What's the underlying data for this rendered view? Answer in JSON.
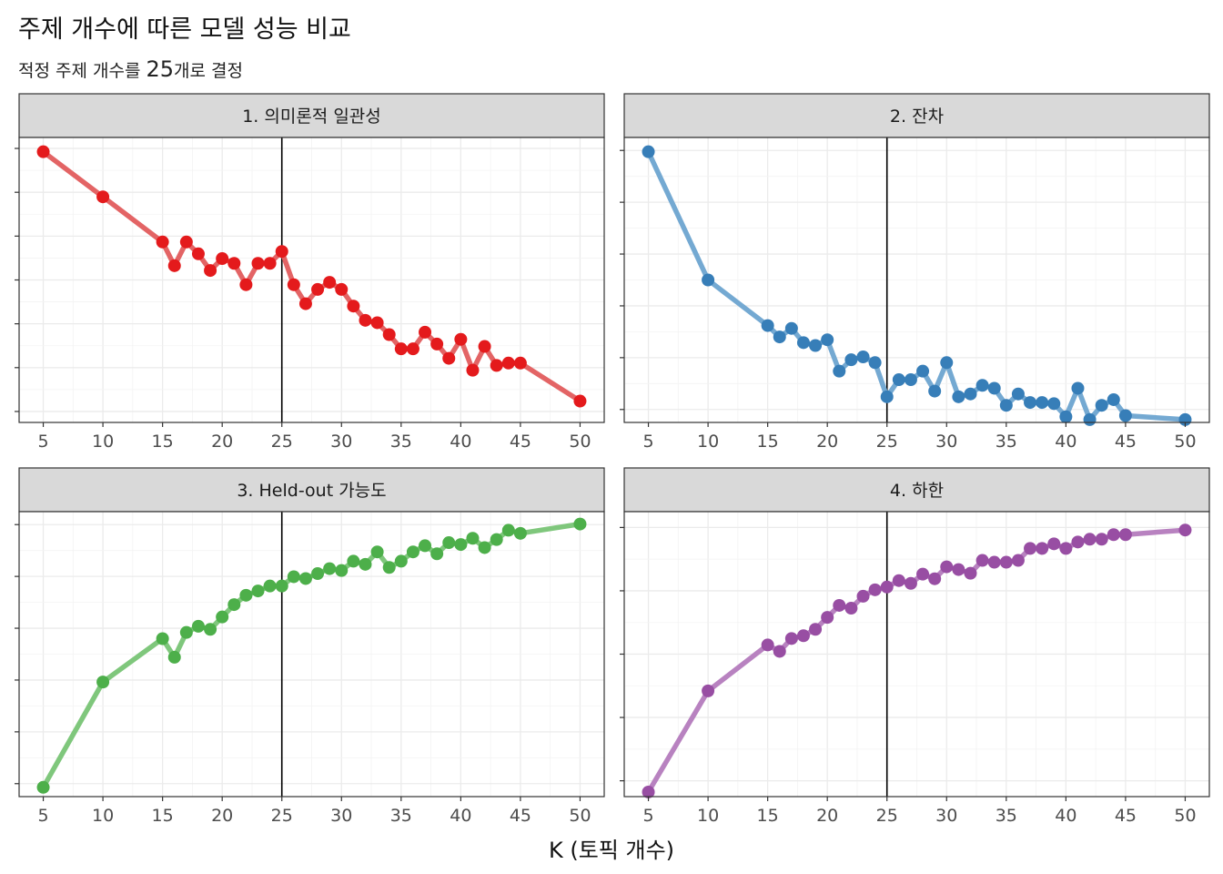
{
  "title_parts": [
    "주제 개수에 따른 모델 성능 비교"
  ],
  "subtitle_parts": [
    "적정 주제 개수를 ",
    "25",
    "개로 결정"
  ],
  "xlabel": "K (토픽 개수)",
  "chart_data": [
    {
      "type": "line",
      "panel_title": "1. 의미론적 일관성",
      "color": "#E41A1C",
      "line_color": "#E36465",
      "xlim": [
        5,
        50
      ],
      "xticks": [
        5,
        10,
        15,
        20,
        25,
        30,
        35,
        40,
        45,
        50
      ],
      "vline": 25,
      "y_tick_labels_visible": false,
      "ylim": [
        -12.6,
        -6.6
      ],
      "x": [
        5,
        10,
        15,
        16,
        17,
        18,
        19,
        20,
        21,
        22,
        23,
        24,
        25,
        26,
        27,
        28,
        29,
        30,
        31,
        32,
        33,
        34,
        35,
        36,
        37,
        38,
        39,
        40,
        41,
        42,
        43,
        44,
        45,
        50
      ],
      "y": [
        -6.9,
        -7.85,
        -8.8,
        -9.3,
        -8.8,
        -9.05,
        -9.4,
        -9.15,
        -9.25,
        -9.7,
        -9.25,
        -9.25,
        -9.0,
        -9.7,
        -10.1,
        -9.8,
        -9.65,
        -9.8,
        -10.15,
        -10.45,
        -10.5,
        -10.75,
        -11.05,
        -11.05,
        -10.7,
        -10.95,
        -11.25,
        -10.85,
        -11.5,
        -11.0,
        -11.4,
        -11.35,
        -11.35,
        -12.15
      ]
    },
    {
      "type": "line",
      "panel_title": "2. 잔차",
      "color": "#377EB8",
      "line_color": "#74A9D2",
      "xlim": [
        5,
        50
      ],
      "xticks": [
        5,
        10,
        15,
        20,
        25,
        30,
        35,
        40,
        45,
        50
      ],
      "vline": 25,
      "y_tick_labels_visible": false,
      "ylim": [
        5.6,
        10.6
      ],
      "x": [
        5,
        10,
        15,
        16,
        17,
        18,
        19,
        20,
        21,
        22,
        23,
        24,
        25,
        26,
        27,
        28,
        29,
        30,
        31,
        32,
        33,
        34,
        35,
        36,
        37,
        38,
        39,
        40,
        41,
        42,
        43,
        44,
        45,
        50
      ],
      "y": [
        10.35,
        8.1,
        7.3,
        7.1,
        7.25,
        7.0,
        6.95,
        7.05,
        6.5,
        6.7,
        6.75,
        6.65,
        6.05,
        6.35,
        6.35,
        6.5,
        6.15,
        6.65,
        6.05,
        6.1,
        6.25,
        6.2,
        5.9,
        6.1,
        5.95,
        5.95,
        5.93,
        5.7,
        6.2,
        5.65,
        5.9,
        6.0,
        5.72,
        5.65
      ]
    },
    {
      "type": "line",
      "panel_title": "3. Held-out 가능도",
      "color": "#4DAF4A",
      "line_color": "#7FC77C",
      "xlim": [
        5,
        50
      ],
      "xticks": [
        5,
        10,
        15,
        20,
        25,
        30,
        35,
        40,
        45,
        50
      ],
      "vline": 25,
      "y_tick_labels_visible": false,
      "ylim": [
        -6.6,
        -2.0
      ],
      "x": [
        5,
        10,
        15,
        16,
        17,
        18,
        19,
        20,
        21,
        22,
        23,
        24,
        25,
        26,
        27,
        28,
        29,
        30,
        31,
        32,
        33,
        34,
        35,
        36,
        37,
        38,
        39,
        40,
        41,
        42,
        43,
        44,
        45,
        50
      ],
      "y": [
        -6.45,
        -4.75,
        -4.05,
        -4.35,
        -3.95,
        -3.85,
        -3.9,
        -3.7,
        -3.5,
        -3.35,
        -3.28,
        -3.2,
        -3.2,
        -3.05,
        -3.08,
        -3.0,
        -2.92,
        -2.95,
        -2.8,
        -2.85,
        -2.65,
        -2.9,
        -2.8,
        -2.65,
        -2.55,
        -2.68,
        -2.5,
        -2.53,
        -2.43,
        -2.58,
        -2.45,
        -2.3,
        -2.35,
        -2.2
      ]
    },
    {
      "type": "line",
      "panel_title": "4. 하한",
      "color": "#984EA3",
      "line_color": "#B882C0",
      "xlim": [
        5,
        50
      ],
      "xticks": [
        5,
        10,
        15,
        20,
        25,
        30,
        35,
        40,
        45,
        50
      ],
      "vline": 25,
      "y_tick_labels_visible": false,
      "ylim": [
        -6.3,
        -3.2
      ],
      "x": [
        5,
        10,
        15,
        16,
        17,
        18,
        19,
        20,
        21,
        22,
        23,
        24,
        25,
        26,
        27,
        28,
        29,
        30,
        31,
        32,
        33,
        34,
        35,
        36,
        37,
        38,
        39,
        40,
        41,
        42,
        43,
        44,
        45,
        50
      ],
      "y": [
        -6.25,
        -5.15,
        -4.65,
        -4.72,
        -4.58,
        -4.55,
        -4.48,
        -4.35,
        -4.22,
        -4.25,
        -4.12,
        -4.05,
        -4.02,
        -3.95,
        -3.98,
        -3.88,
        -3.93,
        -3.8,
        -3.83,
        -3.87,
        -3.73,
        -3.75,
        -3.75,
        -3.73,
        -3.6,
        -3.6,
        -3.55,
        -3.6,
        -3.53,
        -3.5,
        -3.5,
        -3.45,
        -3.45,
        -3.4
      ]
    }
  ]
}
